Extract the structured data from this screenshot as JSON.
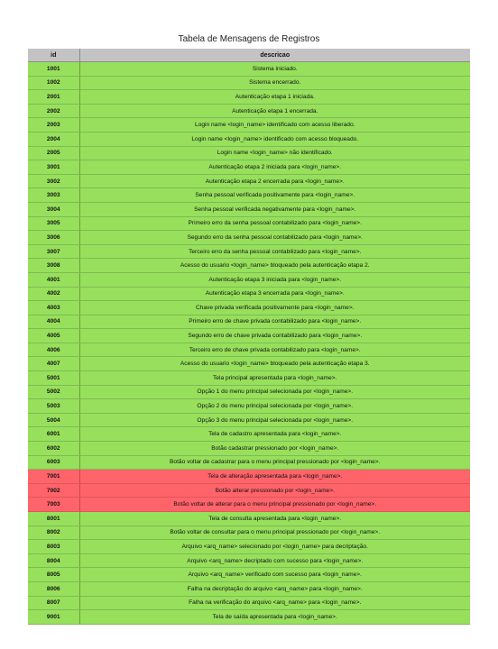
{
  "title": "Tabela de Mensagens de Registros",
  "table": {
    "headers": {
      "id": "id",
      "descricao": "descricao"
    },
    "colors": {
      "header": "#c3c3c3",
      "green": "#97e05c",
      "red": "#ff646a"
    },
    "rows": [
      {
        "id": "1001",
        "descricao": "Sistema iniciado.",
        "status": "green"
      },
      {
        "id": "1002",
        "descricao": "Sistema encerrado.",
        "status": "green"
      },
      {
        "id": "2001",
        "descricao": "Autenticação etapa 1 iniciada.",
        "status": "green"
      },
      {
        "id": "2002",
        "descricao": "Autenticação etapa 1 encerrada.",
        "status": "green"
      },
      {
        "id": "2003",
        "descricao": "Login name <login_name> identificado com acesso liberado.",
        "status": "green"
      },
      {
        "id": "2004",
        "descricao": "Login name <login_name> identificado com acesso bloqueado.",
        "status": "green"
      },
      {
        "id": "2005",
        "descricao": "Login name <login_name> não identificado.",
        "status": "green"
      },
      {
        "id": "3001",
        "descricao": "Autenticação etapa 2 iniciada para <login_name>.",
        "status": "green"
      },
      {
        "id": "3002",
        "descricao": "Autenticação etapa 2 encerrada para <login_name>.",
        "status": "green"
      },
      {
        "id": "3003",
        "descricao": "Senha pessoal verificada positivamente para <login_name>.",
        "status": "green"
      },
      {
        "id": "3004",
        "descricao": "Senha pessoal verificada negativamente para <login_name>.",
        "status": "green"
      },
      {
        "id": "3005",
        "descricao": "Primeiro erro da senha pessoal contabilizado para <login_name>.",
        "status": "green"
      },
      {
        "id": "3006",
        "descricao": "Segundo erro da senha pessoal contabilizado para <login_name>.",
        "status": "green"
      },
      {
        "id": "3007",
        "descricao": "Terceiro erro da senha pessoal contabilizado para <login_name>.",
        "status": "green"
      },
      {
        "id": "3008",
        "descricao": "Acesso do usuario <login_name> bloqueado pela autenticação etapa 2.",
        "status": "green"
      },
      {
        "id": "4001",
        "descricao": "Autenticação etapa 3 iniciada para <login_name>.",
        "status": "green"
      },
      {
        "id": "4002",
        "descricao": "Autenticação etapa 3 encerrada para <login_name>.",
        "status": "green"
      },
      {
        "id": "4003",
        "descricao": "Chave privada verificada positivamente para <login_name>.",
        "status": "green"
      },
      {
        "id": "4004",
        "descricao": "Primeiro erro de chave privada contabilizado para <login_name>.",
        "status": "green"
      },
      {
        "id": "4005",
        "descricao": "Segundo erro de chave privada contabilizado para <login_name>.",
        "status": "green"
      },
      {
        "id": "4006",
        "descricao": "Terceiro erro de chave privada contabilizado para <login_name>.",
        "status": "green"
      },
      {
        "id": "4007",
        "descricao": "Acesso do usuario <login_name> bloqueado pela autenticação etapa 3.",
        "status": "green"
      },
      {
        "id": "5001",
        "descricao": "Tela principal apresentada para <login_name>.",
        "status": "green"
      },
      {
        "id": "5002",
        "descricao": "Opção 1 do menu principal selecionada por <login_name>.",
        "status": "green"
      },
      {
        "id": "5003",
        "descricao": "Opção 2 do menu principal selecionada por <login_name>.",
        "status": "green"
      },
      {
        "id": "5004",
        "descricao": "Opção 3 do menu principal selecionada por <login_name>.",
        "status": "green"
      },
      {
        "id": "6001",
        "descricao": "Tela de cadastro apresentada para <login_name>.",
        "status": "green"
      },
      {
        "id": "6002",
        "descricao": "Botão cadastrar pressionado por <login_name>.",
        "status": "green"
      },
      {
        "id": "6003",
        "descricao": "Botão voltar de cadastrar para o menu principal pressionado por <login_name>.",
        "status": "green"
      },
      {
        "id": "7001",
        "descricao": "Tela de alteração apresentada para <login_name>.",
        "status": "red"
      },
      {
        "id": "7002",
        "descricao": "Botão alterar pressionado por <login_name>.",
        "status": "red"
      },
      {
        "id": "7003",
        "descricao": "Botão voltar de alterar para o menu principal pressionado por <login_name>.",
        "status": "red"
      },
      {
        "id": "8001",
        "descricao": "Tela de consulta apresentada para <login_name>.",
        "status": "green"
      },
      {
        "id": "8002",
        "descricao": "Botão voltar de consultar para o menu principal pressionado por <login_name>.",
        "status": "green"
      },
      {
        "id": "8003",
        "descricao": "Arquivo <arq_name> selecionado por <login_name> para decriptação.",
        "status": "green"
      },
      {
        "id": "8004",
        "descricao": "Arquivo <arq_name> decriptado com sucesso para <login_name>.",
        "status": "green"
      },
      {
        "id": "8005",
        "descricao": "Arquivo <arq_name> verificado com sucesso para <login_name>.",
        "status": "green"
      },
      {
        "id": "8006",
        "descricao": "Falha na decriptação do arquivo <arq_name> para <login_name>.",
        "status": "green"
      },
      {
        "id": "8007",
        "descricao": "Falha na verificação do arquivo <arq_name> para <login_name>.",
        "status": "green"
      },
      {
        "id": "9001",
        "descricao": "Tela de saída apresentada para <login_name>.",
        "status": "green"
      }
    ]
  }
}
